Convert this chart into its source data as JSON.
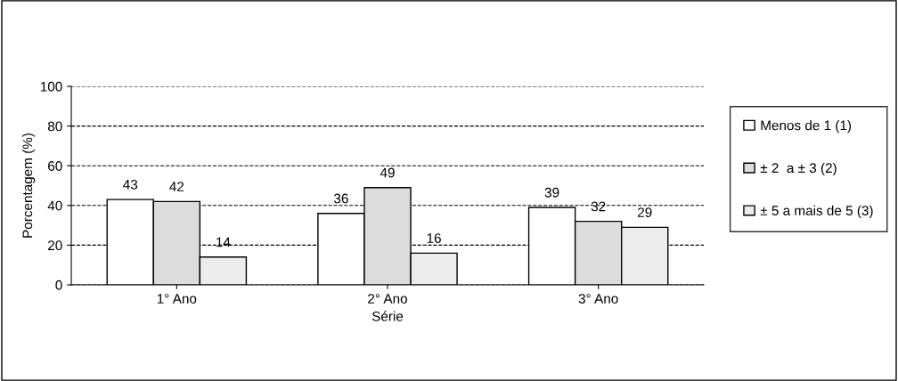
{
  "chart_data": {
    "type": "bar",
    "xlabel": "Série",
    "ylabel": "Porcentagem (%)",
    "categories": [
      "1° Ano",
      "2° Ano",
      "3° Ano"
    ],
    "series": [
      {
        "name": "Menos de 1 (1)",
        "color": "#ffffff",
        "values": [
          43,
          36,
          39
        ]
      },
      {
        "name": "± 2  a ± 3 (2)",
        "color": "#dcdcdc",
        "values": [
          42,
          49,
          32
        ]
      },
      {
        "name": "± 5 a mais de 5 (3)",
        "color": "#ececec",
        "values": [
          14,
          16,
          29
        ]
      }
    ],
    "ylim": [
      0,
      100
    ],
    "yticks": [
      0,
      20,
      40,
      60,
      80,
      100
    ],
    "grid": "y",
    "line_style": "dashed",
    "legend": "right",
    "data_labels": true
  }
}
